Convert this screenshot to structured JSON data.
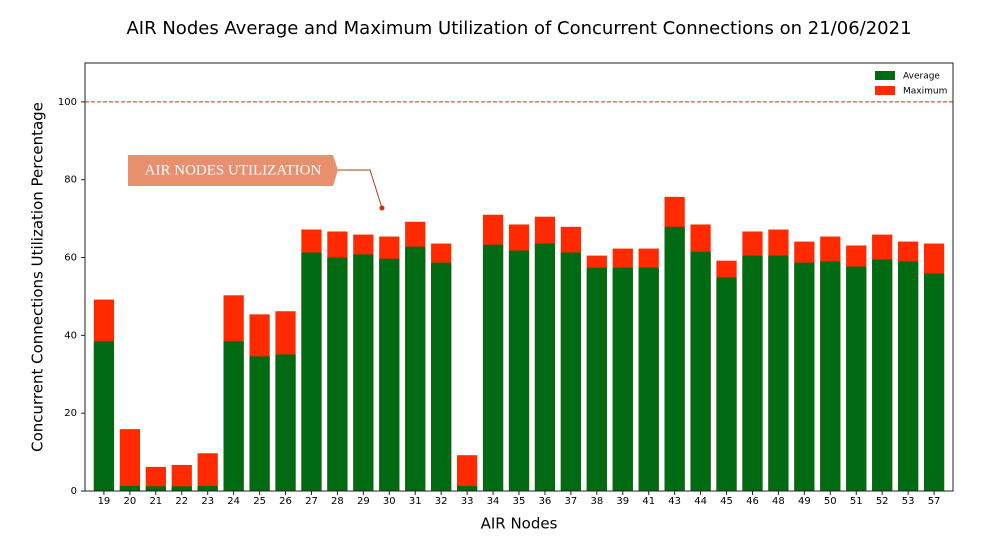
{
  "chart_data": {
    "type": "bar",
    "title": "AIR Nodes Average and Maximum Utilization of Concurrent Connections on 21/06/2021",
    "x_label": "AIR Nodes",
    "y_label": "Concurrent Connections Utilization Percentage",
    "annotation": "AIR NODES UTILIZATION",
    "categories": [
      "19",
      "20",
      "21",
      "22",
      "23",
      "24",
      "25",
      "26",
      "27",
      "28",
      "29",
      "30",
      "31",
      "32",
      "33",
      "34",
      "35",
      "36",
      "37",
      "38",
      "39",
      "41",
      "43",
      "44",
      "45",
      "46",
      "48",
      "49",
      "50",
      "51",
      "52",
      "53",
      "57"
    ],
    "series": [
      {
        "name": "Maximum",
        "color": "#ff2a00",
        "values": [
          49.2,
          15.9,
          6.2,
          6.7,
          9.7,
          50.3,
          45.4,
          46.2,
          67.2,
          66.7,
          65.9,
          65.4,
          69.2,
          63.6,
          9.2,
          71.0,
          68.5,
          70.5,
          67.9,
          60.5,
          62.3,
          62.3,
          75.6,
          68.5,
          59.2,
          66.7,
          67.2,
          64.1,
          65.4,
          63.1,
          65.9,
          64.1,
          63.6
        ]
      },
      {
        "name": "Average",
        "color": "#006b12",
        "values": [
          38.5,
          1.3,
          1.2,
          1.2,
          1.3,
          38.5,
          34.6,
          35.1,
          61.3,
          60.0,
          60.8,
          59.7,
          62.8,
          58.7,
          1.3,
          63.3,
          61.8,
          63.6,
          61.3,
          57.4,
          57.4,
          57.4,
          67.9,
          61.5,
          54.9,
          60.5,
          60.5,
          58.7,
          59.0,
          57.7,
          59.5,
          59.0,
          55.9
        ]
      }
    ],
    "legend_order": [
      1,
      0
    ],
    "reference_line": 100,
    "reference_color": "#d62a00",
    "ylim": [
      0,
      110
    ],
    "yticks": [
      0,
      20,
      40,
      60,
      80,
      100
    ],
    "legend": "upper right"
  }
}
